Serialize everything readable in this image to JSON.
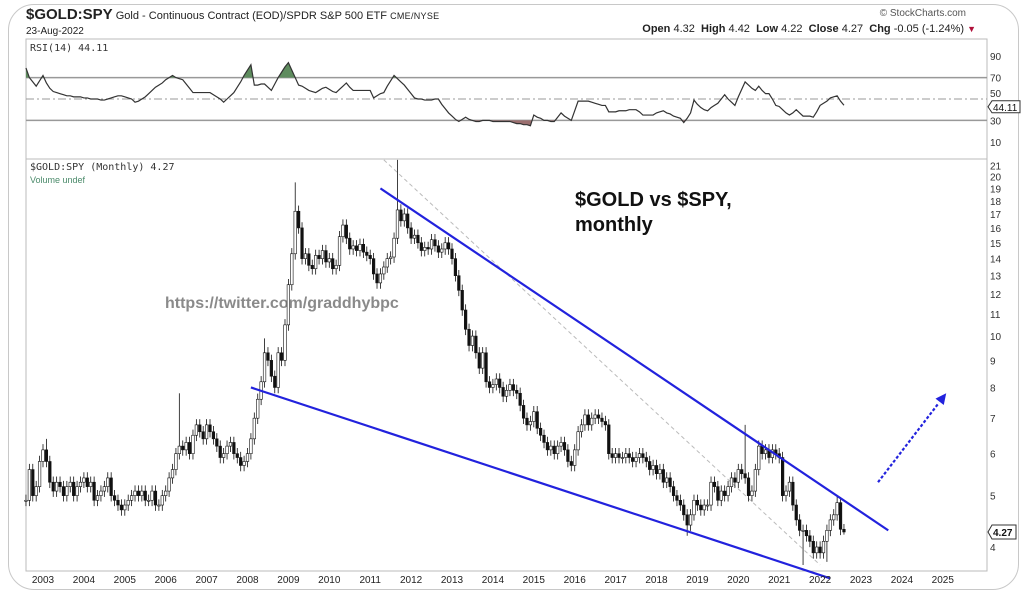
{
  "header": {
    "symbol": "$GOLD:SPY",
    "description": "Gold - Continuous Contract (EOD)/SPDR S&P 500 ETF",
    "exchange": "CME/NYSE",
    "date": "23-Aug-2022",
    "brand": "© StockCharts.com",
    "open_label": "Open",
    "open": "4.32",
    "high_label": "High",
    "high": "4.42",
    "low_label": "Low",
    "low": "4.22",
    "close_label": "Close",
    "close": "4.27",
    "chg_label": "Chg",
    "chg": "-0.05 (-1.24%)",
    "chg_direction": "down",
    "chg_color": "#b0103a"
  },
  "chart_data": [
    {
      "type": "line",
      "panel": "RSI",
      "label": "RSI(14) 44.11",
      "last_value_badge": "44.11",
      "start": "2002-08",
      "frequency": "monthly",
      "ylim": [
        0,
        100
      ],
      "y_ticks": [
        "90",
        "70",
        "50",
        "30",
        "10"
      ],
      "reference_lines": [
        70,
        50,
        30
      ],
      "overbought_fill": "#5e8c5e",
      "oversold_fill": "#9b6f6f",
      "values": [
        79,
        70,
        66,
        62,
        67,
        72,
        65,
        60,
        57,
        56,
        55,
        54,
        53,
        53,
        52,
        52,
        52,
        51,
        51,
        50,
        50,
        50,
        49,
        49,
        50,
        51,
        52,
        53,
        53,
        52,
        51,
        50,
        47,
        48,
        50,
        52,
        55,
        58,
        61,
        63,
        65,
        68,
        70,
        72,
        70,
        69,
        68,
        64,
        60,
        56,
        56,
        56,
        56,
        56,
        56,
        54,
        52,
        50,
        47,
        50,
        53,
        56,
        61,
        66,
        72,
        77,
        82,
        63,
        63,
        64,
        64,
        61,
        58,
        64,
        70,
        75,
        80,
        84,
        77,
        70,
        63,
        62,
        60,
        58,
        57,
        56,
        58,
        60,
        61,
        59,
        57,
        56,
        59,
        62,
        65,
        61,
        58,
        58,
        58,
        58,
        58,
        58,
        51,
        53,
        55,
        56,
        62,
        67,
        72,
        69,
        66,
        63,
        59,
        55,
        51,
        50,
        50,
        49,
        49,
        49,
        50,
        50,
        45,
        41,
        37,
        34,
        31,
        29,
        31,
        33,
        31,
        30,
        29,
        29,
        30,
        30,
        30,
        29,
        29,
        29,
        29,
        29,
        29,
        28,
        27,
        27,
        26,
        26,
        25,
        35,
        33,
        32,
        30,
        30,
        29,
        29,
        33,
        37,
        34,
        32,
        30,
        39,
        48,
        48,
        48,
        48,
        47,
        46,
        45,
        44,
        44,
        38,
        38,
        38,
        39,
        39,
        39,
        40,
        40,
        40,
        38,
        35,
        35,
        35,
        35,
        37,
        38,
        39,
        37,
        36,
        34,
        33,
        32,
        28,
        32,
        37,
        49,
        45,
        42,
        40,
        39,
        42,
        44,
        46,
        50,
        54,
        50,
        47,
        44,
        52,
        59,
        66,
        63,
        60,
        58,
        62,
        58,
        55,
        55,
        50,
        44,
        43,
        40,
        37,
        35,
        37,
        40,
        37,
        34,
        34,
        34,
        33,
        38,
        44,
        46,
        48,
        51,
        52,
        53,
        48,
        44.11
      ]
    },
    {
      "type": "candlestick",
      "panel": "price",
      "label": "$GOLD:SPY (Monthly) 4.27",
      "volume_label": "Volume undef",
      "last_value_badge": "4.27",
      "start": "2002-08",
      "frequency": "monthly",
      "y_scale": "log",
      "ylim": [
        3.5,
        21.5
      ],
      "y_ticks": [
        21,
        20,
        19,
        18,
        17,
        16,
        15,
        14,
        13,
        12,
        11,
        10,
        9,
        8,
        7,
        6,
        5,
        4
      ],
      "x_ticks": [
        "2003",
        "2004",
        "2005",
        "2006",
        "2007",
        "2008",
        "2009",
        "2010",
        "2011",
        "2012",
        "2013",
        "2014",
        "2015",
        "2016",
        "2017",
        "2018",
        "2019",
        "2020",
        "2021",
        "2022",
        "2023",
        "2024",
        "2025"
      ],
      "xlim": [
        "2002-08",
        "2025-12"
      ],
      "close": [
        4.9,
        5.6,
        5.0,
        5.2,
        5.8,
        6.1,
        5.8,
        5.3,
        5.1,
        5.3,
        5.2,
        5.0,
        5.2,
        5.3,
        5.0,
        5.2,
        5.3,
        5.4,
        5.2,
        5.3,
        4.9,
        5.0,
        5.1,
        5.2,
        5.4,
        5.0,
        4.9,
        4.8,
        4.7,
        4.8,
        4.9,
        5.0,
        5.1,
        5.0,
        5.1,
        4.9,
        4.9,
        5.1,
        4.8,
        4.8,
        5.0,
        5.1,
        5.4,
        5.6,
        6.0,
        6.2,
        6.1,
        6.3,
        6.0,
        6.5,
        6.8,
        6.6,
        6.4,
        6.8,
        6.6,
        6.4,
        6.2,
        5.9,
        6.0,
        6.2,
        6.3,
        6.0,
        5.9,
        5.7,
        5.8,
        6.0,
        6.4,
        7.0,
        7.6,
        8.2,
        9.3,
        9.0,
        8.4,
        8.0,
        9.3,
        9.0,
        10.5,
        12.5,
        14.3,
        17.2,
        16.0,
        14.0,
        14.3,
        13.6,
        13.4,
        14.2,
        14.0,
        14.5,
        13.8,
        14.0,
        13.4,
        13.6,
        15.4,
        16.2,
        15.3,
        14.6,
        14.8,
        14.5,
        14.9,
        14.4,
        14.2,
        14.0,
        13.1,
        12.6,
        13.1,
        13.5,
        14.0,
        14.1,
        15.3,
        17.3,
        16.5,
        17.0,
        16.0,
        15.3,
        15.5,
        15.0,
        14.5,
        14.7,
        14.6,
        15.2,
        14.8,
        14.4,
        14.6,
        15.0,
        14.6,
        14.0,
        13.0,
        12.2,
        11.2,
        10.3,
        9.6,
        10.0,
        9.3,
        8.7,
        9.3,
        8.2,
        8.0,
        8.1,
        8.3,
        8.0,
        7.7,
        7.9,
        8.1,
        7.9,
        7.8,
        7.4,
        7.0,
        6.8,
        6.9,
        7.2,
        6.7,
        6.5,
        6.3,
        6.1,
        6.2,
        6.0,
        6.2,
        6.3,
        6.1,
        5.8,
        5.7,
        6.1,
        6.6,
        6.8,
        7.1,
        6.8,
        7.0,
        7.1,
        7.0,
        6.9,
        6.8,
        6.0,
        5.9,
        6.0,
        5.9,
        5.9,
        6.0,
        5.9,
        5.8,
        5.9,
        6.0,
        5.9,
        5.8,
        5.6,
        5.7,
        5.5,
        5.6,
        5.3,
        5.4,
        5.2,
        5.0,
        4.9,
        4.8,
        4.6,
        4.4,
        4.6,
        4.9,
        4.8,
        4.7,
        4.8,
        4.8,
        5.3,
        5.2,
        4.9,
        5.1,
        5.0,
        5.2,
        5.4,
        5.3,
        5.6,
        5.5,
        5.4,
        5.0,
        5.1,
        5.6,
        6.2,
        6.0,
        6.1,
        5.9,
        6.1,
        6.0,
        5.9,
        5.0,
        5.1,
        5.3,
        4.8,
        4.5,
        4.3,
        4.3,
        4.2,
        4.1,
        3.9,
        4.0,
        3.9,
        4.1,
        4.3,
        4.5,
        4.6,
        4.85,
        4.32,
        4.27
      ],
      "notable_highs": {
        "2003-02": 6.4,
        "2006-05": 7.8,
        "2008-06": 9.9,
        "2009-03": 19.5,
        "2011-09": 21.5,
        "2020-03": 6.8
      },
      "notable_lows": {
        "2018-10": 4.2,
        "2021-08": 3.7,
        "2022-03": 3.75
      },
      "last_bar": {
        "open": 4.32,
        "high": 4.42,
        "low": 4.22,
        "close": 4.27
      }
    }
  ],
  "annotations": {
    "title_text_line1": "$GOLD vs $SPY,",
    "title_text_line2": "monthly",
    "watermark": "https://twitter.com/graddhybpc",
    "line_color": "#2222dd",
    "upper_trendline": {
      "from": [
        "2011-04",
        19.0
      ],
      "to": [
        "2023-09",
        4.3
      ]
    },
    "lower_trendline": {
      "from": [
        "2008-02",
        8.0
      ],
      "to": [
        "2022-04",
        3.49
      ]
    },
    "dashed_grey_line": {
      "from": [
        "2011-05",
        21.5
      ],
      "to": [
        "2022-01",
        3.7
      ]
    },
    "dotted_arrow": {
      "from": [
        "2023-06",
        5.3
      ],
      "to": [
        "2025-02",
        7.8
      ]
    }
  }
}
